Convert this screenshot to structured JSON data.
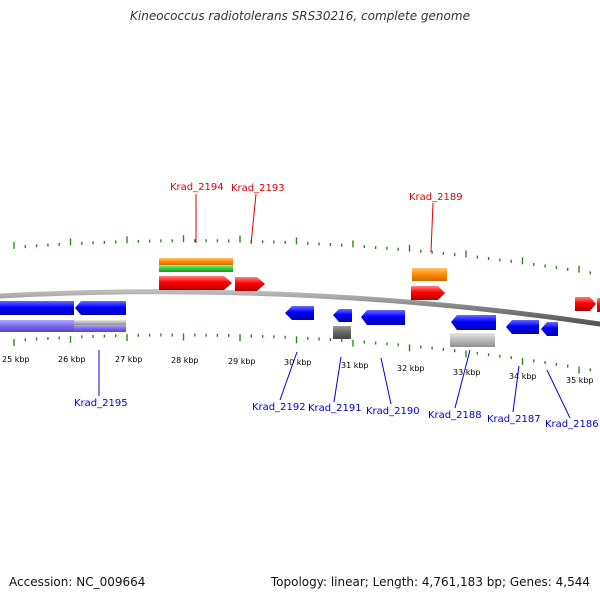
{
  "header": {
    "title": "Kineococcus radiotolerans SRS30216, complete genome"
  },
  "footer": {
    "accession": "Accession: NC_009664",
    "summary": "Topology: linear; Length: 4,761,183 bp; Genes: 4,544"
  },
  "colors": {
    "forward_gene": "#ff0000",
    "reverse_gene": "#0000ff",
    "rna": "#ff8c00",
    "cds_forward": "#33cc33",
    "cds_reverse": "#7b68ee",
    "other": "#bbbbbb",
    "tick_minor": "#2a8a1a",
    "backbone": "#808080"
  },
  "scale": {
    "unit": "kbp",
    "labels": [
      "25 kbp",
      "26 kbp",
      "27 kbp",
      "28 kbp",
      "29 kbp",
      "30 kbp",
      "31 kbp",
      "32 kbp",
      "33 kbp",
      "34 kbp",
      "35 kbp"
    ]
  },
  "forward_genes": [
    {
      "label": "Krad_2194"
    },
    {
      "label": "Krad_2193"
    },
    {
      "label": "Krad_2189"
    }
  ],
  "reverse_genes": [
    {
      "label": "Krad_2195"
    },
    {
      "label": "Krad_2192"
    },
    {
      "label": "Krad_2191"
    },
    {
      "label": "Krad_2190"
    },
    {
      "label": "Krad_2188"
    },
    {
      "label": "Krad_2187"
    },
    {
      "label": "Krad_2186"
    }
  ]
}
